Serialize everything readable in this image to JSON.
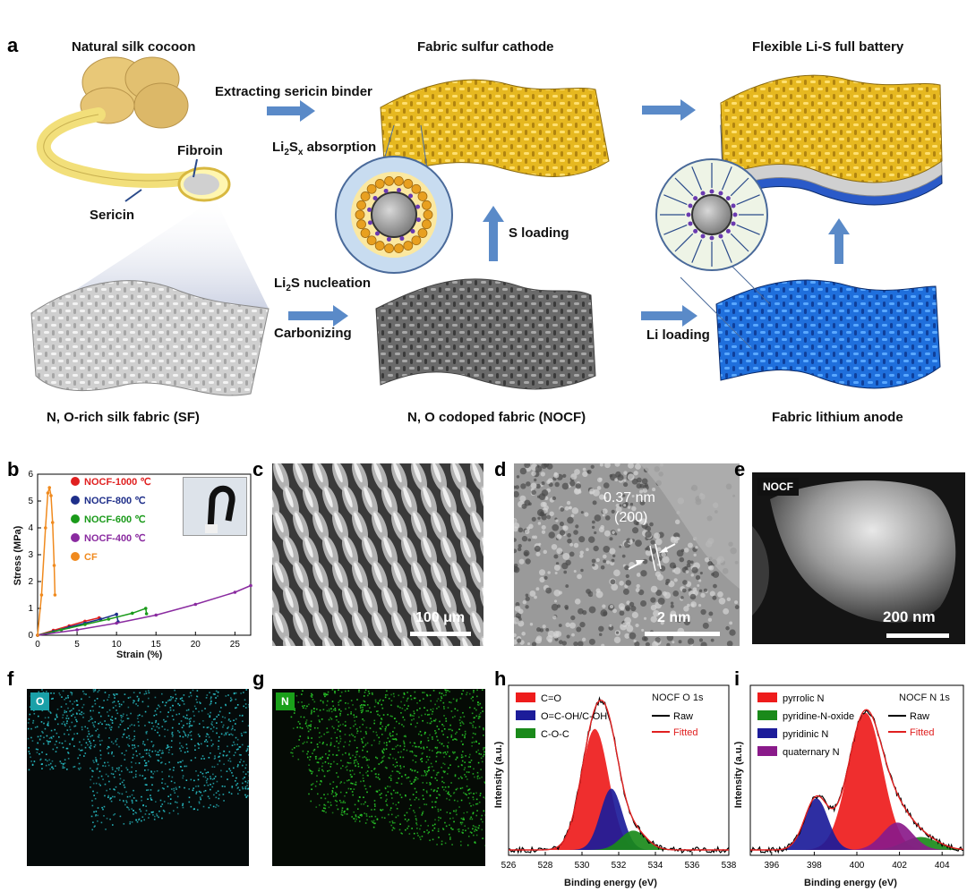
{
  "panel_a": {
    "label": "a",
    "natural_silk_cocoon": "Natural silk cocoon",
    "fibroin": "Fibroin",
    "sericin": "Sericin",
    "silk_fabric": "N, O-rich silk fabric (SF)",
    "extracting": "Extracting sericin binder",
    "carbonizing": "Carbonizing",
    "fabric_sulfur_cathode": "Fabric sulfur cathode",
    "li2sx_absorption_main": "Li",
    "li2sx_absorption_sub": "2",
    "li2sx_absorption_s": "S",
    "li2sx_absorption_x": "x",
    "li2sx_absorption_rest": " absorption",
    "li2s_nucleation_main": "Li",
    "li2s_nucleation_sub": "2",
    "li2s_nucleation_rest": "S nucleation",
    "s_loading": "S loading",
    "nocf": "N, O codoped fabric (NOCF)",
    "li_loading": "Li loading",
    "flexible_battery": "Flexible Li-S full battery",
    "fabric_lithium_anode": "Fabric lithium anode"
  },
  "panel_b": {
    "label": "b",
    "chart_data": {
      "type": "line",
      "xlabel": "Strain (%)",
      "ylabel": "Stress (MPa)",
      "xlim": [
        0,
        27
      ],
      "ylim": [
        0,
        6
      ],
      "xticks": [
        "0",
        "5",
        "10",
        "15",
        "20",
        "25"
      ],
      "yticks": [
        "0",
        "1",
        "2",
        "3",
        "4",
        "5",
        "6"
      ],
      "series": [
        {
          "name": "NOCF-1000 ℃",
          "color": "#e02020",
          "marker": "diamond",
          "x": [
            0,
            2,
            4,
            6,
            7.8
          ],
          "y": [
            0,
            0.18,
            0.35,
            0.52,
            0.65
          ]
        },
        {
          "name": "NOCF-800 ℃",
          "color": "#1f2f8a",
          "marker": "triangle-left",
          "x": [
            0,
            2,
            4,
            6,
            8,
            10,
            10.2
          ],
          "y": [
            0,
            0.14,
            0.3,
            0.45,
            0.6,
            0.78,
            0.5
          ]
        },
        {
          "name": "NOCF-600 ℃",
          "color": "#1a9a1a",
          "marker": "pentagon",
          "x": [
            0,
            3,
            6,
            9,
            12,
            13.7,
            13.8
          ],
          "y": [
            0,
            0.2,
            0.4,
            0.6,
            0.82,
            1.0,
            0.8
          ]
        },
        {
          "name": "NOCF-400 ℃",
          "color": "#8a2ba0",
          "marker": "hexagon",
          "x": [
            0,
            5,
            10,
            15,
            20,
            25,
            27
          ],
          "y": [
            0,
            0.2,
            0.45,
            0.75,
            1.15,
            1.6,
            1.85
          ]
        },
        {
          "name": "CF",
          "color": "#f08a1e",
          "marker": "circle",
          "x": [
            0,
            0.5,
            1.0,
            1.3,
            1.5,
            1.7,
            1.9,
            2.1,
            2.2
          ],
          "y": [
            0,
            1.5,
            4.0,
            5.3,
            5.5,
            5.2,
            4.2,
            2.6,
            1.5
          ]
        }
      ]
    }
  },
  "panel_c": {
    "label": "c",
    "scalebar": "100 μm"
  },
  "panel_d": {
    "label": "d",
    "d_spacing": "0.37 nm",
    "plane": "(200)",
    "scalebar": "2 nm"
  },
  "panel_e": {
    "label": "e",
    "tag": "NOCF",
    "scalebar": "200 nm"
  },
  "panel_f": {
    "label": "f",
    "tag": "O",
    "tag_color": "#1aa0a8"
  },
  "panel_g": {
    "label": "g",
    "tag": "N",
    "tag_color": "#1aa01a"
  },
  "panel_h": {
    "label": "h",
    "title": "NOCF O 1s",
    "chart_data": {
      "type": "area",
      "xlabel": "Binding energy (eV)",
      "ylabel": "Intensity (a.u.)",
      "xlim": [
        526,
        538
      ],
      "xticks": [
        "526",
        "528",
        "530",
        "532",
        "534",
        "536",
        "538"
      ],
      "series": [
        {
          "name": "C=O",
          "color": "#ee1c1c",
          "center": 530.7,
          "height": 0.75,
          "width": 0.75
        },
        {
          "name": "O=C-OH/C-OH",
          "color": "#1c1c9a",
          "center": 531.6,
          "height": 0.38,
          "width": 0.6
        },
        {
          "name": "C-O-C",
          "color": "#1a8a1a",
          "center": 532.8,
          "height": 0.12,
          "width": 0.7
        },
        {
          "name": "Raw",
          "color": "#000000"
        },
        {
          "name": "Fitted",
          "color": "#e02020"
        }
      ]
    }
  },
  "panel_i": {
    "label": "i",
    "title": "NOCF N 1s",
    "chart_data": {
      "type": "area",
      "xlabel": "Binding energy (eV)",
      "ylabel": "Intensity (a.u.)",
      "xlim": [
        395,
        405
      ],
      "xticks": [
        "396",
        "398",
        "400",
        "402",
        "404"
      ],
      "series": [
        {
          "name": "pyrrolic N",
          "color": "#ee1c1c",
          "center": 400.4,
          "height": 0.85,
          "width": 0.8
        },
        {
          "name": "pyridine-N-oxide",
          "color": "#1a8a1a",
          "center": 403.0,
          "height": 0.08,
          "width": 0.8
        },
        {
          "name": "pyridinic N",
          "color": "#1c1c9a",
          "center": 398.1,
          "height": 0.32,
          "width": 0.55
        },
        {
          "name": "quaternary N",
          "color": "#8a1a8a",
          "center": 401.9,
          "height": 0.17,
          "width": 0.7
        },
        {
          "name": "Raw",
          "color": "#000000"
        },
        {
          "name": "Fitted",
          "color": "#e02020"
        }
      ]
    }
  }
}
